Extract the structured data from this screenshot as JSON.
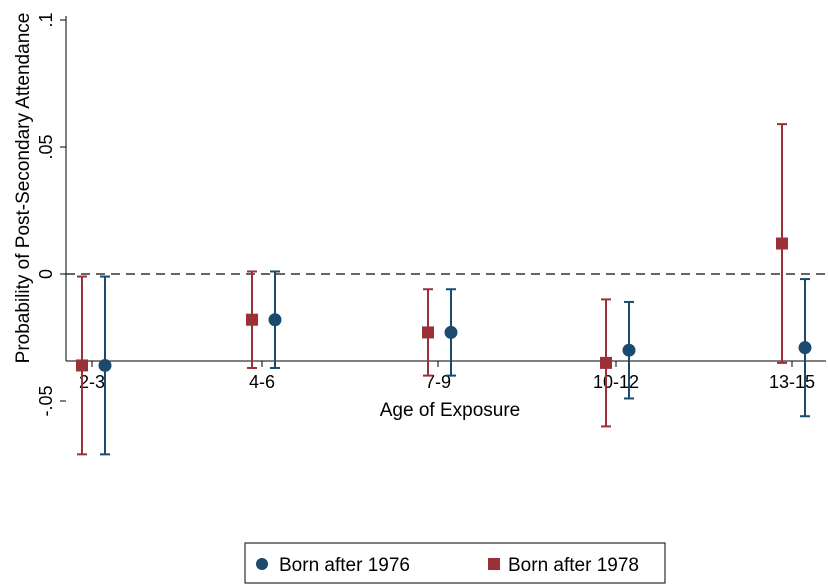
{
  "chart_data": {
    "type": "scatter",
    "subtype": "coefficient plot with 95% confidence intervals",
    "xlabel": "Age of Exposure",
    "ylabel": "Probability of Post-Secondary Attendance",
    "categories": [
      "2-3",
      "4-6",
      "7-9",
      "10-12",
      "13-15"
    ],
    "y_ticks": [
      {
        "value": 0.1,
        "label": ".1"
      },
      {
        "value": 0.05,
        "label": ".05"
      },
      {
        "value": 0,
        "label": "0"
      },
      {
        "value": -0.05,
        "label": "-.05"
      }
    ],
    "ylim": [
      -0.072,
      0.1
    ],
    "reference_line": {
      "y": 0,
      "style": "dashed"
    },
    "grid": false,
    "legend_position": "bottom",
    "series": [
      {
        "name": "Born after 1978",
        "marker": "square",
        "color": "#9b3038",
        "estimates": [
          -0.036,
          -0.018,
          -0.023,
          -0.035,
          0.012
        ],
        "ci_low": [
          -0.071,
          -0.037,
          -0.04,
          -0.06,
          -0.035
        ],
        "ci_high": [
          -0.001,
          0.001,
          -0.006,
          -0.01,
          0.059
        ]
      },
      {
        "name": "Born after 1976",
        "marker": "circle",
        "color": "#1a4a6e",
        "estimates": [
          -0.036,
          -0.018,
          -0.023,
          -0.03,
          -0.029
        ],
        "ci_low": [
          -0.071,
          -0.037,
          -0.04,
          -0.049,
          -0.056
        ],
        "ci_high": [
          -0.001,
          0.001,
          -0.006,
          -0.011,
          -0.002
        ]
      }
    ],
    "legend": [
      {
        "label": "Born after 1976",
        "marker": "circle",
        "color": "#1a4a6e"
      },
      {
        "label": "Born after 1978",
        "marker": "square",
        "color": "#9b3038"
      }
    ]
  }
}
